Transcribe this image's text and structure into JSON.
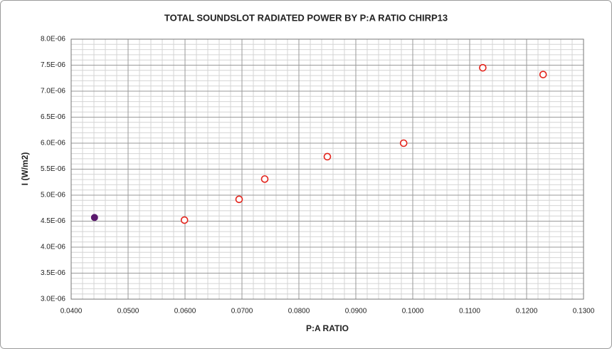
{
  "chart_data": {
    "type": "scatter",
    "title": "TOTAL SOUNDSLOT RADIATED POWER BY P:A RATIO CHIRP13",
    "x_label": "P:A RATIO",
    "y_label": "I (W/m2)",
    "series": [
      {
        "color": "#5b1a6e",
        "marker": "filled",
        "x": [
          0.0441
        ],
        "values": [
          4.57e-06
        ]
      },
      {
        "color": "#e3231b",
        "marker": "hollow",
        "x": [
          0.0599,
          0.0695,
          0.074,
          0.085,
          0.0984,
          0.1123,
          0.1229
        ],
        "values": [
          4.52e-06,
          4.92e-06,
          5.31e-06,
          5.74e-06,
          6e-06,
          7.45e-06,
          7.32e-06
        ]
      }
    ],
    "xlim": [
      0.04,
      0.13
    ],
    "xticks": [
      {
        "value": 0.04,
        "label": "0.0400"
      },
      {
        "value": 0.05,
        "label": "0.0500"
      },
      {
        "value": 0.06,
        "label": "0.0600"
      },
      {
        "value": 0.07,
        "label": "0.0700"
      },
      {
        "value": 0.08,
        "label": "0.0800"
      },
      {
        "value": 0.09,
        "label": "0.0900"
      },
      {
        "value": 0.1,
        "label": "0.1000"
      },
      {
        "value": 0.11,
        "label": "0.1100"
      },
      {
        "value": 0.12,
        "label": "0.1200"
      },
      {
        "value": 0.13,
        "label": "0.1300"
      }
    ],
    "ylim": [
      3e-06,
      8e-06
    ],
    "yticks": [
      {
        "value": 3e-06,
        "label": "3.0E-06"
      },
      {
        "value": 3.5e-06,
        "label": "3.5E-06"
      },
      {
        "value": 4e-06,
        "label": "4.0E-06"
      },
      {
        "value": 4.5e-06,
        "label": "4.5E-06"
      },
      {
        "value": 5e-06,
        "label": "5.0E-06"
      },
      {
        "value": 5.5e-06,
        "label": "5.5E-06"
      },
      {
        "value": 6e-06,
        "label": "6.0E-06"
      },
      {
        "value": 6.5e-06,
        "label": "6.5E-06"
      },
      {
        "value": 7e-06,
        "label": "7.0E-06"
      },
      {
        "value": 7.5e-06,
        "label": "7.5E-06"
      },
      {
        "value": 8e-06,
        "label": "8.0E-06"
      }
    ],
    "grid": true,
    "minor_grid": 5
  }
}
